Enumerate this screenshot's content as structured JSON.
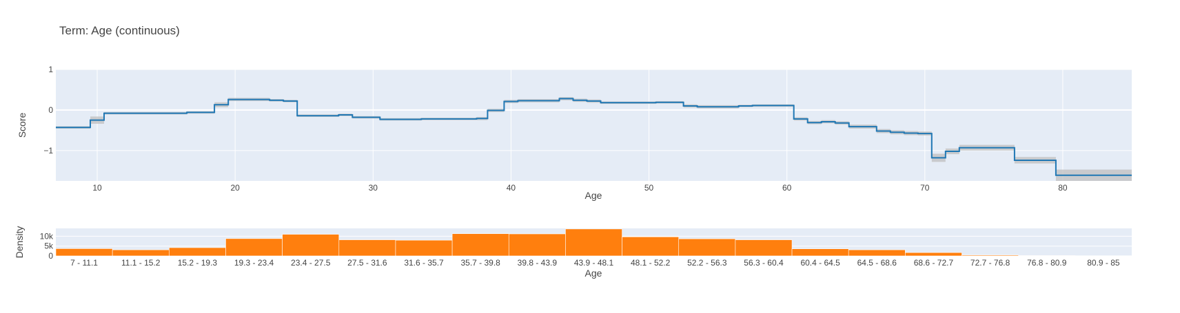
{
  "chart_data": [
    {
      "type": "line",
      "subtype": "step",
      "title": "Term: Age (continuous)",
      "xlabel": "Age",
      "ylabel": "Score",
      "xlim": [
        7,
        85
      ],
      "ylim": [
        -1.75,
        1
      ],
      "x_ticks": [
        10,
        20,
        30,
        40,
        50,
        60,
        70,
        80
      ],
      "y_ticks": [
        1,
        0,
        -1
      ],
      "y_tick_labels": [
        "1",
        "0",
        "−1"
      ],
      "grid": true,
      "line_color": "#1f77b4",
      "band_color": "#bfbfbf",
      "series": [
        {
          "x": [
            7,
            9.5,
            10.5,
            12,
            16.5,
            18.5,
            19.5,
            22.5,
            23.5,
            24.5,
            27.5,
            28.5,
            30.5,
            33.5,
            37.5,
            38.3,
            39.5,
            40.5,
            43.5,
            44.5,
            45.5,
            46.5,
            50.5,
            52.5,
            53.5,
            56.5,
            57.5,
            60.5,
            61.5,
            62.5,
            63.5,
            64.5,
            66.5,
            67.5,
            68.5,
            69.5,
            70.5,
            71.5,
            72.5,
            76.5,
            79.5,
            85
          ],
          "y": [
            -0.43,
            -0.25,
            -0.08,
            -0.08,
            -0.06,
            0.13,
            0.26,
            0.24,
            0.22,
            -0.14,
            -0.12,
            -0.18,
            -0.23,
            -0.22,
            -0.21,
            -0.01,
            0.21,
            0.23,
            0.28,
            0.24,
            0.22,
            0.18,
            0.19,
            0.1,
            0.08,
            0.1,
            0.11,
            -0.22,
            -0.31,
            -0.29,
            -0.32,
            -0.41,
            -0.52,
            -0.55,
            -0.57,
            -0.58,
            -1.18,
            -1.02,
            -0.93,
            -1.24,
            -1.61,
            -1.61
          ],
          "upper": [
            -0.4,
            -0.16,
            -0.05,
            -0.05,
            -0.03,
            0.19,
            0.3,
            0.27,
            0.25,
            -0.11,
            -0.09,
            -0.15,
            -0.2,
            -0.19,
            -0.17,
            0.03,
            0.25,
            0.27,
            0.32,
            0.28,
            0.26,
            0.21,
            0.22,
            0.14,
            0.12,
            0.13,
            0.14,
            -0.18,
            -0.27,
            -0.25,
            -0.28,
            -0.36,
            -0.47,
            -0.5,
            -0.52,
            -0.53,
            -1.08,
            -0.95,
            -0.86,
            -1.16,
            -1.47,
            -1.47
          ],
          "lower": [
            -0.46,
            -0.34,
            -0.11,
            -0.11,
            -0.09,
            0.07,
            0.22,
            0.21,
            0.19,
            -0.17,
            -0.15,
            -0.21,
            -0.26,
            -0.25,
            -0.25,
            -0.05,
            0.17,
            0.19,
            0.24,
            0.2,
            0.18,
            0.15,
            0.16,
            0.06,
            0.04,
            0.07,
            0.08,
            -0.26,
            -0.35,
            -0.33,
            -0.36,
            -0.46,
            -0.57,
            -0.6,
            -0.62,
            -0.63,
            -1.28,
            -1.09,
            -1.0,
            -1.32,
            -1.75,
            -1.75
          ]
        }
      ]
    },
    {
      "type": "bar",
      "xlabel": "Age",
      "ylabel": "Density",
      "categories": [
        "7 - 11.1",
        "11.1 - 15.2",
        "15.2 - 19.3",
        "19.3 - 23.4",
        "23.4 - 27.5",
        "27.5 - 31.6",
        "31.6 - 35.7",
        "35.7 - 39.8",
        "39.8 - 43.9",
        "43.9 - 48.1",
        "48.1 - 52.2",
        "52.2 - 56.3",
        "56.3 - 60.4",
        "60.4 - 64.5",
        "64.5 - 68.6",
        "68.6 - 72.7",
        "72.7 - 76.8",
        "76.8 - 80.9",
        "80.9 - 85"
      ],
      "values": [
        3700,
        3100,
        4200,
        8800,
        11000,
        8200,
        8000,
        11300,
        11200,
        13700,
        9700,
        8700,
        8200,
        3600,
        3100,
        1700,
        400,
        200,
        100
      ],
      "ylim": [
        0,
        14000
      ],
      "y_ticks": [
        0,
        5000,
        10000
      ],
      "y_tick_labels": [
        "0",
        "5k",
        "10k"
      ],
      "grid": true,
      "bar_color": "#ff7f0e"
    }
  ]
}
